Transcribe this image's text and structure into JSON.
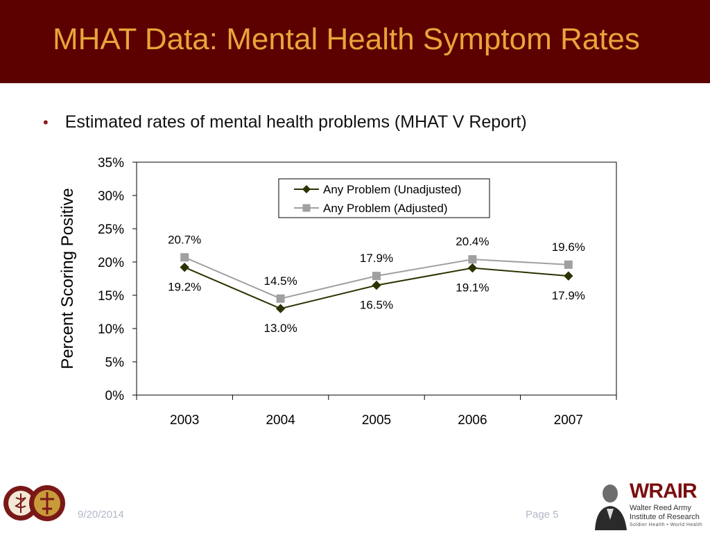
{
  "slide": {
    "title": "MHAT Data: Mental Health Symptom Rates",
    "bullet": "Estimated rates of mental health problems (MHAT V Report)",
    "date": "9/20/2014",
    "page": "Page 5"
  },
  "branding": {
    "wrair_name": "WRAIR",
    "wrair_line1": "Walter Reed Army",
    "wrair_line2": "Institute of Research",
    "wrair_tagline": "Soldier Health • World Health"
  },
  "colors": {
    "header_bg": "#5c0000",
    "title": "#e8a53a",
    "unadjusted": "#2b3300",
    "adjusted": "#a0a0a0"
  },
  "chart_data": {
    "type": "line",
    "categories": [
      "2003",
      "2004",
      "2005",
      "2006",
      "2007"
    ],
    "series": [
      {
        "name": "Any Problem (Unadjusted)",
        "values": [
          19.2,
          13.0,
          16.5,
          19.1,
          17.9
        ],
        "labels": [
          "19.2%",
          "13.0%",
          "16.5%",
          "19.1%",
          "17.9%"
        ],
        "marker": "diamond"
      },
      {
        "name": "Any Problem (Adjusted)",
        "values": [
          20.7,
          14.5,
          17.9,
          20.4,
          19.6
        ],
        "labels": [
          "20.7%",
          "14.5%",
          "17.9%",
          "20.4%",
          "19.6%"
        ],
        "marker": "square"
      }
    ],
    "ylabel": "Percent Scoring Positive",
    "ylim": [
      0,
      35
    ],
    "yticks": [
      "0%",
      "5%",
      "10%",
      "15%",
      "20%",
      "25%",
      "30%",
      "35%"
    ],
    "legend": "top-center",
    "grid": false
  }
}
